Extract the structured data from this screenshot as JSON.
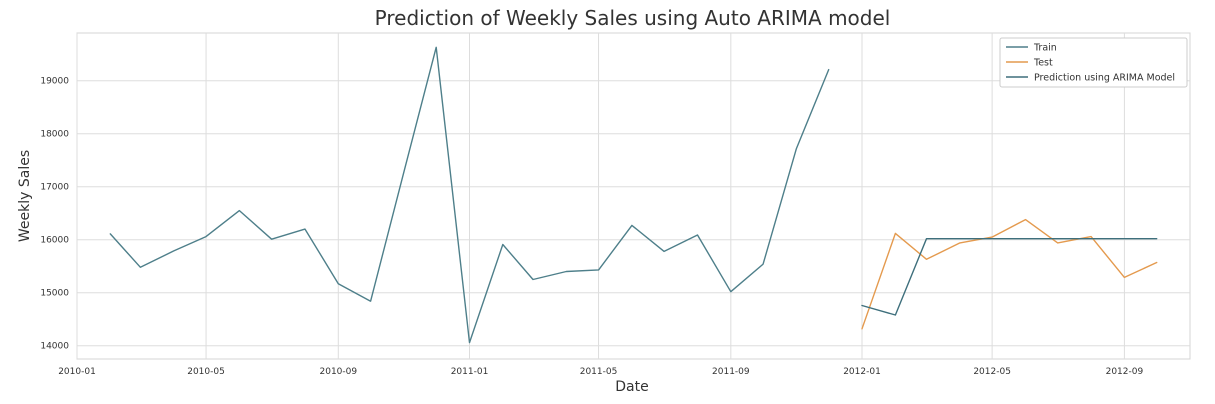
{
  "chart_data": {
    "type": "line",
    "title": "Prediction of Weekly Sales using Auto ARIMA model",
    "xlabel": "Date",
    "ylabel": "Weekly Sales",
    "xlim": [
      "2010-01-01",
      "2012-11-01"
    ],
    "ylim": [
      13750,
      19900
    ],
    "x_ticks": [
      "2010-01",
      "2010-05",
      "2010-09",
      "2011-01",
      "2011-05",
      "2011-09",
      "2012-01",
      "2012-05",
      "2012-09"
    ],
    "y_ticks": [
      14000,
      15000,
      16000,
      17000,
      18000,
      19000
    ],
    "grid": true,
    "legend_position": "top-right",
    "series": [
      {
        "name": "Train",
        "color": "#4e7f8a",
        "x": [
          "2010-02-01",
          "2010-03-01",
          "2010-04-01",
          "2010-05-01",
          "2010-06-01",
          "2010-07-01",
          "2010-08-01",
          "2010-09-01",
          "2010-10-01",
          "2010-11-01",
          "2010-12-01",
          "2011-01-01",
          "2011-02-01",
          "2011-03-01",
          "2011-04-01",
          "2011-05-01",
          "2011-06-01",
          "2011-07-01",
          "2011-08-01",
          "2011-09-01",
          "2011-10-01",
          "2011-11-01",
          "2011-12-01"
        ],
        "values": [
          16110,
          15480,
          15790,
          16060,
          16550,
          16010,
          16200,
          15170,
          14840,
          17280,
          19630,
          14060,
          15910,
          15250,
          15400,
          15430,
          16270,
          15780,
          16090,
          15020,
          15540,
          17720,
          19210
        ]
      },
      {
        "name": "Test",
        "color": "#e49a4e",
        "x": [
          "2012-01-01",
          "2012-02-01",
          "2012-03-01",
          "2012-04-01",
          "2012-05-01",
          "2012-06-01",
          "2012-07-01",
          "2012-08-01",
          "2012-09-01",
          "2012-10-01"
        ],
        "values": [
          14320,
          16120,
          15630,
          15940,
          16050,
          16380,
          15940,
          16060,
          15290,
          15570
        ]
      },
      {
        "name": "Prediction using ARIMA Model",
        "color": "#3e6f7c",
        "x": [
          "2012-01-01",
          "2012-02-01",
          "2012-03-01",
          "2012-04-01",
          "2012-05-01",
          "2012-06-01",
          "2012-07-01",
          "2012-08-01",
          "2012-09-01",
          "2012-10-01"
        ],
        "values": [
          14760,
          14580,
          16020,
          16020,
          16020,
          16020,
          16020,
          16020,
          16020,
          16020
        ]
      }
    ]
  }
}
